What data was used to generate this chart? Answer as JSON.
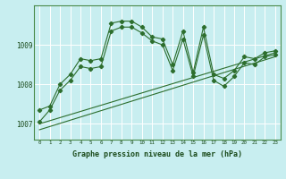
{
  "title": "Graphe pression niveau de la mer (hPa)",
  "background_color": "#c8eef0",
  "line_color": "#2d6e2d",
  "grid_color": "#ffffff",
  "ylabel_ticks": [
    1007,
    1008,
    1009
  ],
  "xlim": [
    -0.5,
    23.5
  ],
  "ylim": [
    1006.6,
    1010.0
  ],
  "series1": {
    "x": [
      0,
      1,
      2,
      3,
      4,
      5,
      6,
      7,
      8,
      9,
      10,
      11,
      12,
      13,
      14,
      15,
      16,
      17,
      18,
      19,
      20,
      21,
      22,
      23
    ],
    "y": [
      1007.35,
      1007.45,
      1008.0,
      1008.25,
      1008.65,
      1008.6,
      1008.65,
      1009.55,
      1009.6,
      1009.6,
      1009.45,
      1009.2,
      1009.15,
      1008.5,
      1009.35,
      1008.3,
      1009.45,
      1008.25,
      1008.15,
      1008.35,
      1008.7,
      1008.65,
      1008.8,
      1008.85
    ]
  },
  "series2": {
    "x": [
      0,
      1,
      2,
      3,
      4,
      5,
      6,
      7,
      8,
      9,
      10,
      11,
      12,
      13,
      14,
      15,
      16,
      17,
      18,
      19,
      20,
      21,
      22,
      23
    ],
    "y": [
      1007.05,
      1007.35,
      1007.85,
      1008.1,
      1008.45,
      1008.4,
      1008.45,
      1009.35,
      1009.45,
      1009.45,
      1009.3,
      1009.1,
      1009.0,
      1008.35,
      1009.15,
      1008.2,
      1009.25,
      1008.1,
      1007.95,
      1008.2,
      1008.55,
      1008.5,
      1008.7,
      1008.75
    ]
  },
  "series_smooth1": {
    "x": [
      0,
      23
    ],
    "y": [
      1007.0,
      1008.8
    ]
  },
  "series_smooth2": {
    "x": [
      0,
      23
    ],
    "y": [
      1006.85,
      1008.7
    ]
  }
}
